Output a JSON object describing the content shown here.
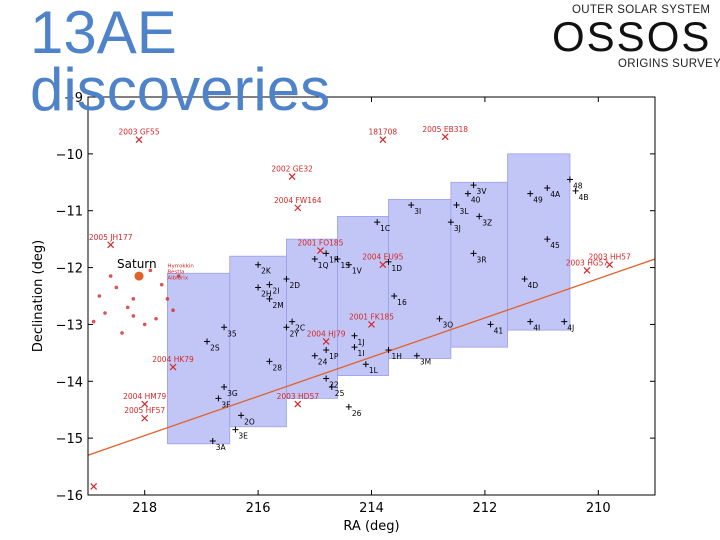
{
  "slide": {
    "title": "13AE discoveries",
    "logo_top": "OUTER SOLAR SYSTEM",
    "logo_main": "OSSOS",
    "logo_bottom": "ORIGINS SURVEY"
  },
  "colors": {
    "field": "#b7bcf5",
    "field_edge": "#9aa0ea",
    "red": "#d62728",
    "line": "#e0622a",
    "frame": "#000000",
    "saturn": "#e0622a"
  },
  "chart_data": {
    "type": "scatter",
    "title": "",
    "xlabel": "RA (deg)",
    "ylabel": "Declination (deg)",
    "xlim": [
      219.0,
      209.0
    ],
    "ylim": [
      -16.0,
      -9.0
    ],
    "xticks": [
      218,
      216,
      214,
      212,
      210
    ],
    "yticks": [
      -9,
      -10,
      -11,
      -12,
      -13,
      -14,
      -15,
      -16
    ],
    "xtick_labels": [
      "218",
      "216",
      "214",
      "212",
      "210"
    ],
    "ytick_labels": [
      "−9",
      "−10",
      "−11",
      "−12",
      "−13",
      "−14",
      "−15",
      "−16"
    ],
    "ecliptic": {
      "x": [
        219.0,
        209.0
      ],
      "y": [
        -15.3,
        -11.85
      ]
    },
    "saturn": {
      "label": "Saturn",
      "x": 218.1,
      "y": -12.15
    },
    "saturn_moon_labels": [
      "Hyrrokkin",
      "Bestla",
      "Albiorix"
    ],
    "fields": [
      {
        "x0": 217.6,
        "x1": 216.5,
        "y0": -15.1,
        "y1": -12.1
      },
      {
        "x0": 216.5,
        "x1": 215.5,
        "y0": -14.8,
        "y1": -11.8
      },
      {
        "x0": 215.5,
        "x1": 214.6,
        "y0": -14.3,
        "y1": -11.5
      },
      {
        "x0": 214.6,
        "x1": 213.7,
        "y0": -13.9,
        "y1": -11.1
      },
      {
        "x0": 213.7,
        "x1": 212.6,
        "y0": -13.6,
        "y1": -10.8
      },
      {
        "x0": 212.6,
        "x1": 211.6,
        "y0": -13.4,
        "y1": -10.5
      },
      {
        "x0": 211.6,
        "x1": 210.5,
        "y0": -13.1,
        "y1": -10.0
      }
    ],
    "discoveries": [
      {
        "label": "3A",
        "x": 216.8,
        "y": -15.05
      },
      {
        "label": "3E",
        "x": 216.4,
        "y": -14.85
      },
      {
        "label": "2O",
        "x": 216.3,
        "y": -14.6
      },
      {
        "label": "3G",
        "x": 216.6,
        "y": -14.1
      },
      {
        "label": "3F",
        "x": 216.7,
        "y": -14.3
      },
      {
        "label": "2S",
        "x": 216.9,
        "y": -13.3
      },
      {
        "label": "35",
        "x": 216.6,
        "y": -13.05
      },
      {
        "label": "2K",
        "x": 216.0,
        "y": -11.95
      },
      {
        "label": "2H",
        "x": 216.0,
        "y": -12.35
      },
      {
        "label": "2I",
        "x": 215.8,
        "y": -12.3
      },
      {
        "label": "2M",
        "x": 215.8,
        "y": -12.55
      },
      {
        "label": "2D",
        "x": 215.5,
        "y": -12.2
      },
      {
        "label": "28",
        "x": 215.8,
        "y": -13.65
      },
      {
        "label": "2C",
        "x": 215.4,
        "y": -12.95
      },
      {
        "label": "2Y",
        "x": 215.5,
        "y": -13.05
      },
      {
        "label": "1Q",
        "x": 215.0,
        "y": -11.85
      },
      {
        "label": "1R",
        "x": 214.8,
        "y": -11.75
      },
      {
        "label": "1S",
        "x": 214.6,
        "y": -11.85
      },
      {
        "label": "1V",
        "x": 214.4,
        "y": -11.95
      },
      {
        "label": "1P",
        "x": 214.8,
        "y": -13.45
      },
      {
        "label": "24",
        "x": 215.0,
        "y": -13.55
      },
      {
        "label": "22",
        "x": 214.8,
        "y": -13.95
      },
      {
        "label": "25",
        "x": 214.7,
        "y": -14.1
      },
      {
        "label": "26",
        "x": 214.4,
        "y": -14.45
      },
      {
        "label": "1J",
        "x": 214.3,
        "y": -13.2
      },
      {
        "label": "1I",
        "x": 214.3,
        "y": -13.4
      },
      {
        "label": "1L",
        "x": 214.1,
        "y": -13.7
      },
      {
        "label": "1H",
        "x": 213.7,
        "y": -13.45
      },
      {
        "label": "1C",
        "x": 213.9,
        "y": -11.2
      },
      {
        "label": "1D",
        "x": 213.7,
        "y": -11.9
      },
      {
        "label": "16",
        "x": 213.6,
        "y": -12.5
      },
      {
        "label": "3M",
        "x": 213.2,
        "y": -13.55
      },
      {
        "label": "3O",
        "x": 212.8,
        "y": -12.9
      },
      {
        "label": "3I",
        "x": 213.3,
        "y": -10.9
      },
      {
        "label": "3L",
        "x": 212.5,
        "y": -10.9
      },
      {
        "label": "3J",
        "x": 212.6,
        "y": -11.2
      },
      {
        "label": "3Z",
        "x": 212.1,
        "y": -11.1
      },
      {
        "label": "3R",
        "x": 212.2,
        "y": -11.75
      },
      {
        "label": "41",
        "x": 211.9,
        "y": -13.0
      },
      {
        "label": "3V",
        "x": 212.2,
        "y": -10.55
      },
      {
        "label": "40",
        "x": 212.3,
        "y": -10.7
      },
      {
        "label": "49",
        "x": 211.2,
        "y": -10.7
      },
      {
        "label": "4A",
        "x": 210.9,
        "y": -10.6
      },
      {
        "label": "4B",
        "x": 210.4,
        "y": -10.65
      },
      {
        "label": "48",
        "x": 210.5,
        "y": -10.45
      },
      {
        "label": "45",
        "x": 210.9,
        "y": -11.5
      },
      {
        "label": "4D",
        "x": 211.3,
        "y": -12.2
      },
      {
        "label": "4I",
        "x": 211.2,
        "y": -12.95
      },
      {
        "label": "4J",
        "x": 210.6,
        "y": -12.95
      }
    ],
    "known_objects": [
      {
        "label": "2003 GF55",
        "x": 218.1,
        "y": -9.75
      },
      {
        "label": "181708",
        "x": 213.8,
        "y": -9.75
      },
      {
        "label": "2005 EB318",
        "x": 212.7,
        "y": -9.7
      },
      {
        "label": "2002 GE32",
        "x": 215.4,
        "y": -10.4
      },
      {
        "label": "2004 FW164",
        "x": 215.3,
        "y": -10.95
      },
      {
        "label": "2005 JH177",
        "x": 218.6,
        "y": -11.6
      },
      {
        "label": "2001 FO185",
        "x": 214.9,
        "y": -11.7
      },
      {
        "label": "2004 EU95",
        "x": 213.8,
        "y": -11.95
      },
      {
        "label": "2003 HH57",
        "x": 209.8,
        "y": -11.95
      },
      {
        "label": "2003 HG57",
        "x": 210.2,
        "y": -12.05
      },
      {
        "label": "2001 FK185",
        "x": 214.0,
        "y": -13.0
      },
      {
        "label": "2004 HJ79",
        "x": 214.8,
        "y": -13.3
      },
      {
        "label": "2004 HK79",
        "x": 217.5,
        "y": -13.75
      },
      {
        "label": "2003 HD57",
        "x": 215.3,
        "y": -14.4
      },
      {
        "label": "2004 HM79",
        "x": 218.0,
        "y": -14.4
      },
      {
        "label": "2005 HF57",
        "x": 218.0,
        "y": -14.65
      },
      {
        "label": "",
        "x": 218.9,
        "y": -15.85
      }
    ],
    "moons": [
      {
        "x": 218.7,
        "y": -12.8
      },
      {
        "x": 218.8,
        "y": -12.5
      },
      {
        "x": 218.5,
        "y": -12.35
      },
      {
        "x": 218.3,
        "y": -12.7
      },
      {
        "x": 218.2,
        "y": -12.55
      },
      {
        "x": 218.4,
        "y": -13.15
      },
      {
        "x": 218.0,
        "y": -13.0
      },
      {
        "x": 217.8,
        "y": -12.9
      },
      {
        "x": 217.9,
        "y": -12.05
      },
      {
        "x": 217.7,
        "y": -12.3
      },
      {
        "x": 217.6,
        "y": -12.55
      },
      {
        "x": 217.4,
        "y": -12.15
      },
      {
        "x": 218.6,
        "y": -12.15
      },
      {
        "x": 218.2,
        "y": -12.85
      },
      {
        "x": 217.5,
        "y": -12.75
      },
      {
        "x": 218.9,
        "y": -12.95
      }
    ]
  }
}
